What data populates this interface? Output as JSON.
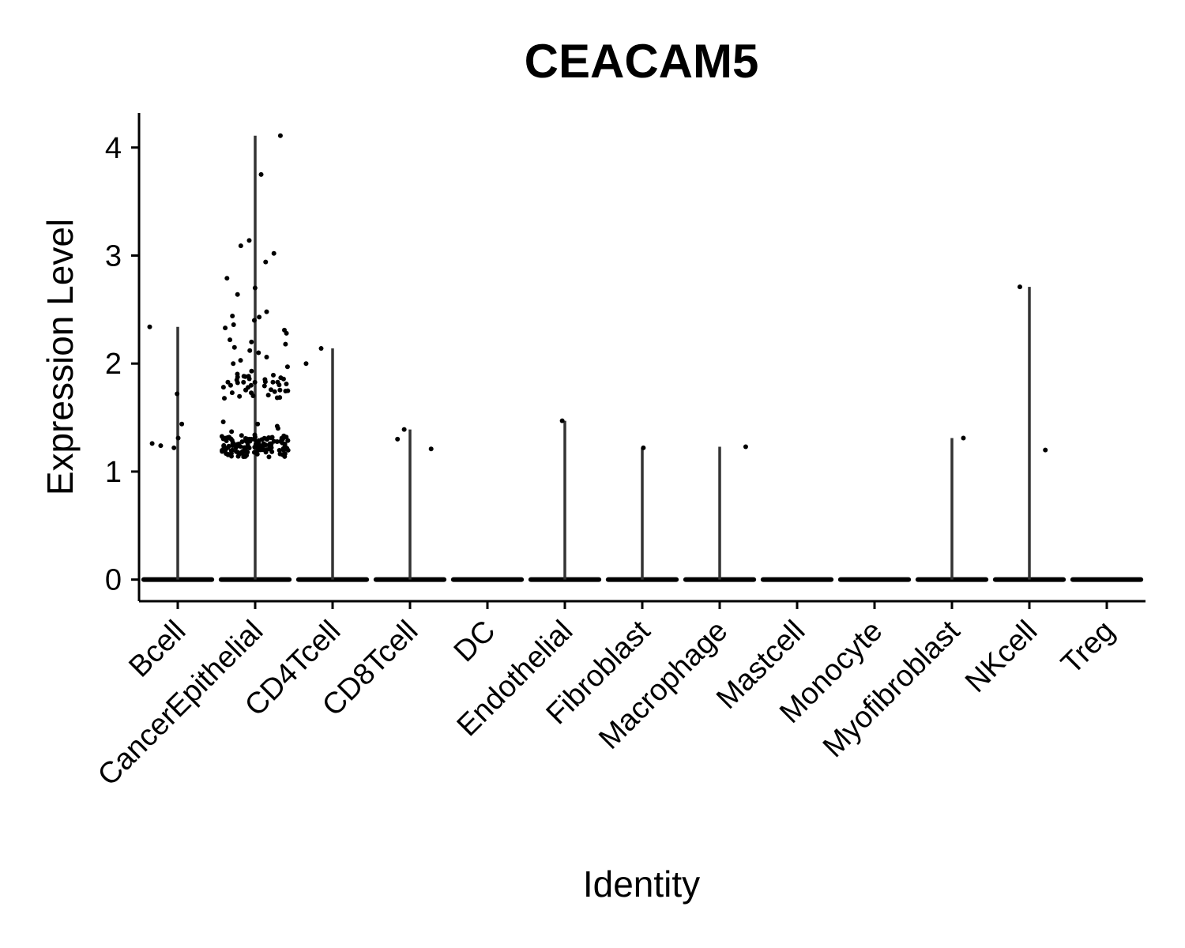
{
  "chart_data": {
    "type": "violin",
    "title": "CEACAM5",
    "xlabel": "Identity",
    "ylabel": "Expression Level",
    "ylim": [
      -0.2,
      4.32
    ],
    "yticks": [
      0,
      1,
      2,
      3,
      4
    ],
    "categories": [
      "Bcell",
      "CancerEpithelial",
      "CD4Tcell",
      "CD8Tcell",
      "DC",
      "Endothelial",
      "Fibroblast",
      "Macrophage",
      "Mastcell",
      "Monocyte",
      "Myofibroblast",
      "NKcell",
      "Treg"
    ],
    "max_values": [
      2.34,
      4.11,
      2.14,
      1.39,
      0,
      1.47,
      1.22,
      1.23,
      0,
      0,
      1.31,
      2.71,
      0
    ],
    "nonzero_points": [
      [
        1.72,
        1.44,
        1.26,
        1.24,
        1.22,
        1.31,
        2.34
      ],
      [
        4.11,
        3.75,
        3.14,
        3.09,
        3.02,
        2.94,
        2.79,
        2.7,
        2.64,
        2.48,
        2.44,
        2.43,
        2.4,
        2.36,
        2.33,
        2.31,
        2.28,
        2.22,
        2.2,
        2.18,
        2.15,
        2.12,
        2.1,
        2.06,
        2.03,
        2.0,
        1.97,
        1.93,
        1.9,
        1.87,
        1.85,
        1.83,
        1.81,
        1.79,
        1.77,
        1.75,
        1.72,
        1.7,
        1.46,
        1.44,
        1.42,
        1.4,
        1.37,
        1.34,
        1.32,
        1.3,
        1.28,
        1.26,
        1.24,
        1.22,
        1.2,
        1.18,
        1.16
      ],
      [
        2.14,
        2.0
      ],
      [
        1.39,
        1.3,
        1.21
      ],
      [],
      [
        1.47
      ],
      [
        1.22
      ],
      [
        1.23
      ],
      [],
      [],
      [
        1.31
      ],
      [
        2.71,
        1.2
      ],
      []
    ],
    "grid": false,
    "legend": "none"
  }
}
